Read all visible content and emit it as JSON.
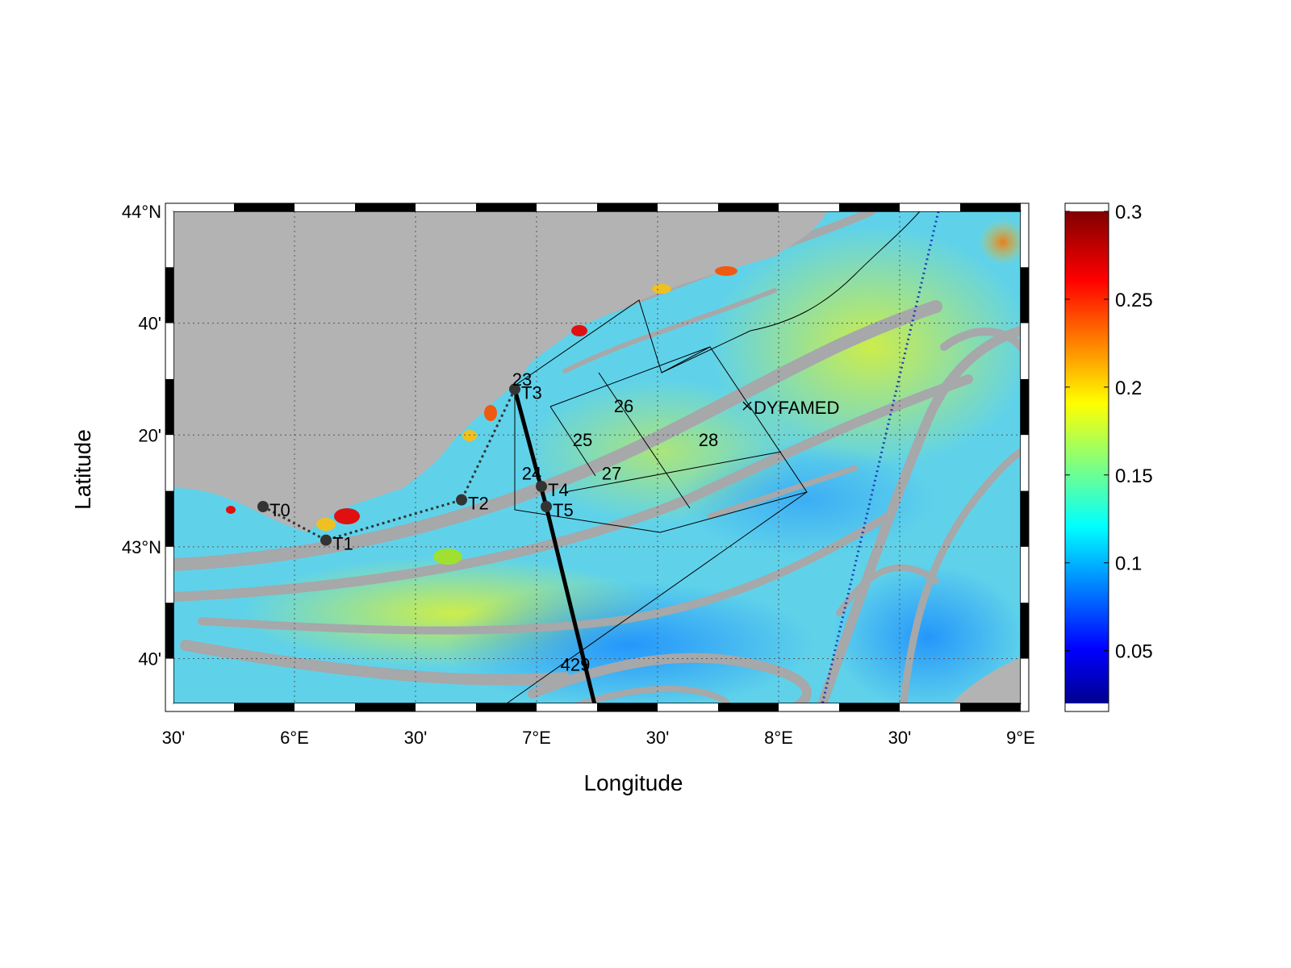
{
  "figure": {
    "xlabel": "Longitude",
    "ylabel": "Latitude",
    "x_ticks": [
      {
        "lon": 5.5,
        "label": "30'"
      },
      {
        "lon": 6.0,
        "label": "6°E"
      },
      {
        "lon": 6.5,
        "label": "30'"
      },
      {
        "lon": 7.0,
        "label": "7°E"
      },
      {
        "lon": 7.5,
        "label": "30'"
      },
      {
        "lon": 8.0,
        "label": "8°E"
      },
      {
        "lon": 8.5,
        "label": "30'"
      },
      {
        "lon": 9.0,
        "label": "9°E"
      }
    ],
    "y_ticks": [
      {
        "lat": 44.0,
        "label": "44°N"
      },
      {
        "lat": 43.6667,
        "label": "40'"
      },
      {
        "lat": 43.3333,
        "label": "20'"
      },
      {
        "lat": 43.0,
        "label": "43°N"
      },
      {
        "lat": 42.6667,
        "label": "40'"
      }
    ],
    "colorbar": {
      "min": 0.02,
      "max": 0.3,
      "ticks": [
        {
          "value": 0.3,
          "label": "0.3"
        },
        {
          "value": 0.25,
          "label": "0.25"
        },
        {
          "value": 0.2,
          "label": "0.2"
        },
        {
          "value": 0.15,
          "label": "0.15"
        },
        {
          "value": 0.1,
          "label": "0.1"
        },
        {
          "value": 0.05,
          "label": "0.05"
        }
      ],
      "colormap": "jet"
    },
    "colors": {
      "land": "#b3b3b3",
      "ocean_base": "#5fd2ea",
      "filament_gray": "#a6a8aa",
      "track": "#000000",
      "ship_transect": "#1f3fb8"
    }
  },
  "chart_data": {
    "type": "map",
    "lon_range": [
      5.5,
      9.0
    ],
    "lat_range": [
      42.5333,
      44.0
    ],
    "stations": [
      {
        "name": "T0",
        "lon": 5.87,
        "lat": 43.12
      },
      {
        "name": "T1",
        "lon": 6.13,
        "lat": 43.02
      },
      {
        "name": "T2",
        "lon": 6.69,
        "lat": 43.14
      },
      {
        "name": "T3",
        "lon": 6.91,
        "lat": 43.47
      },
      {
        "name": "T4",
        "lon": 7.02,
        "lat": 43.18
      },
      {
        "name": "T5",
        "lon": 7.04,
        "lat": 43.12
      }
    ],
    "box_labels": [
      {
        "name": "23",
        "lon": 6.94,
        "lat": 43.5
      },
      {
        "name": "24",
        "lon": 6.98,
        "lat": 43.22
      },
      {
        "name": "25",
        "lon": 7.19,
        "lat": 43.32
      },
      {
        "name": "26",
        "lon": 7.36,
        "lat": 43.42
      },
      {
        "name": "27",
        "lon": 7.31,
        "lat": 43.22
      },
      {
        "name": "28",
        "lon": 7.71,
        "lat": 43.32
      },
      {
        "name": "429",
        "lon": 7.16,
        "lat": 42.65
      }
    ],
    "marked_point": {
      "name": "DYFAMED",
      "lon": 7.87,
      "lat": 43.42
    },
    "track_429": [
      [
        6.91,
        43.47
      ],
      [
        7.04,
        43.12
      ],
      [
        7.24,
        42.53
      ]
    ],
    "dotted_coastal_track": [
      [
        5.87,
        43.12
      ],
      [
        6.13,
        43.02
      ],
      [
        6.69,
        43.14
      ],
      [
        6.91,
        43.47
      ]
    ],
    "ship_transect": [
      [
        8.66,
        44.0
      ],
      [
        8.18,
        42.53
      ]
    ]
  }
}
